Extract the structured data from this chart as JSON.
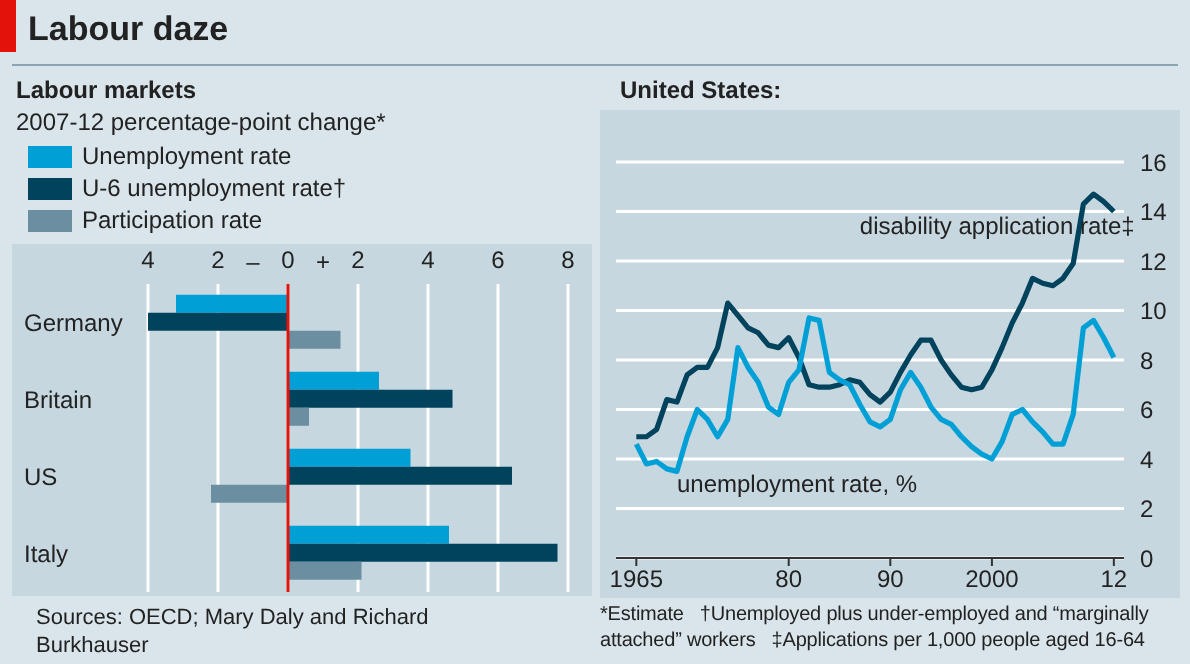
{
  "chart_data": [
    {
      "type": "bar",
      "orientation": "horizontal",
      "title": "Labour daze",
      "subtitle": "Labour markets",
      "xlabel": "2007-12 percentage-point change*",
      "categories": [
        "Germany",
        "Britain",
        "US",
        "Italy"
      ],
      "series": [
        {
          "name": "Unemployment rate",
          "color": "#00a0d6",
          "values": [
            -3.2,
            2.6,
            3.5,
            4.6
          ]
        },
        {
          "name": "U-6 unemployment rate†",
          "color": "#01435c",
          "values": [
            -4.0,
            4.7,
            6.4,
            7.7
          ]
        },
        {
          "name": "Participation rate",
          "color": "#6b8fa0",
          "values": [
            1.5,
            0.6,
            -2.2,
            2.1
          ]
        }
      ],
      "xlim": [
        -4,
        8
      ],
      "xticks": [
        {
          "value": -4,
          "label": "4"
        },
        {
          "value": -2,
          "label": "2"
        },
        0,
        {
          "value": 2,
          "label": "2"
        },
        4,
        6,
        8
      ],
      "grid": "x",
      "legend": "top left",
      "ref_lines": [
        {
          "axis": "x",
          "value": 0,
          "color": "#e3120b"
        }
      ],
      "annotations": [
        "–",
        "+",
        "Sources: OECD; Mary Daly and Richard Burkhauser"
      ]
    },
    {
      "type": "line",
      "title": "United States:",
      "x": [
        1965,
        1966,
        1967,
        1968,
        1969,
        1970,
        1971,
        1972,
        1973,
        1974,
        1975,
        1976,
        1977,
        1978,
        1979,
        1980,
        1981,
        1982,
        1983,
        1984,
        1985,
        1986,
        1987,
        1988,
        1989,
        1990,
        1991,
        1992,
        1993,
        1994,
        1995,
        1996,
        1997,
        1998,
        1999,
        2000,
        2001,
        2002,
        2003,
        2004,
        2005,
        2006,
        2007,
        2008,
        2009,
        2010,
        2011,
        2012
      ],
      "series": [
        {
          "name": "disability application rate‡",
          "color": "#01435c",
          "values": [
            4.9,
            4.9,
            5.2,
            6.4,
            6.3,
            7.4,
            7.7,
            7.7,
            8.5,
            10.3,
            9.8,
            9.3,
            9.1,
            8.6,
            8.5,
            8.9,
            8.1,
            7.0,
            6.9,
            6.9,
            7.0,
            7.2,
            7.1,
            6.6,
            6.3,
            6.7,
            7.5,
            8.2,
            8.8,
            8.8,
            8.0,
            7.4,
            6.9,
            6.8,
            6.9,
            7.6,
            8.5,
            9.5,
            10.3,
            11.3,
            11.1,
            11.0,
            11.3,
            11.9,
            14.3,
            14.7,
            14.4,
            14.0
          ]
        },
        {
          "name": "unemployment rate, %",
          "color": "#00a0d6",
          "values": [
            4.6,
            3.8,
            3.9,
            3.6,
            3.5,
            4.9,
            6.0,
            5.6,
            4.9,
            5.6,
            8.5,
            7.7,
            7.1,
            6.1,
            5.8,
            7.1,
            7.6,
            9.7,
            9.6,
            7.5,
            7.2,
            7.0,
            6.2,
            5.5,
            5.3,
            5.6,
            6.8,
            7.5,
            6.9,
            6.1,
            5.6,
            5.4,
            4.9,
            4.5,
            4.2,
            4.0,
            4.7,
            5.8,
            6.0,
            5.5,
            5.1,
            4.6,
            4.6,
            5.8,
            9.3,
            9.6,
            8.9,
            8.1
          ]
        }
      ],
      "xlim": [
        1963,
        2013
      ],
      "xticks": [
        1965,
        {
          "value": 1980,
          "label": "80"
        },
        {
          "value": 1990,
          "label": "90"
        },
        2000,
        {
          "value": 2012,
          "label": "12"
        }
      ],
      "ylim": [
        0,
        16
      ],
      "yticks": [
        0,
        2,
        4,
        6,
        8,
        10,
        12,
        14,
        16
      ],
      "grid": "y",
      "marker": "none",
      "line_style": "solid",
      "annotations": [
        "*Estimate",
        "†Unemployed plus under-employed and “marginally attached” workers",
        "‡Applications per 1,000 people aged 16-64"
      ]
    }
  ]
}
